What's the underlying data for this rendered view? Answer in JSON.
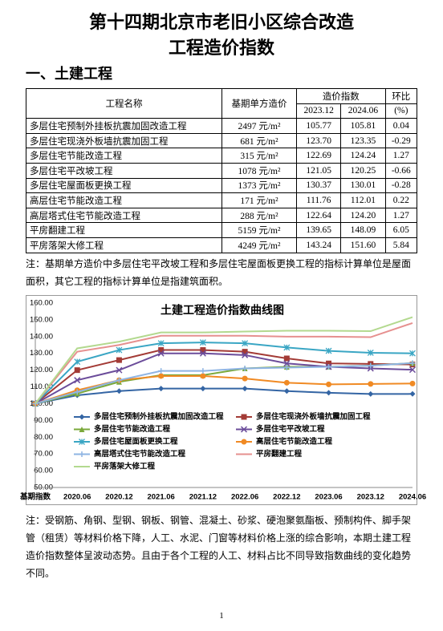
{
  "header": {
    "title_line1": "第十四期北京市老旧小区综合改造",
    "title_line2": "工程造价指数"
  },
  "section": "一、土建工程",
  "table": {
    "headers": [
      "工程名称",
      "基期单方造价",
      "造价指数",
      "环比",
      "2023.12",
      "2024.06",
      "(%)"
    ],
    "rows": [
      [
        "多层住宅预制外挂板抗震加固改造工程",
        "2497 元/m²",
        "105.77",
        "105.81",
        "0.04"
      ],
      [
        "多层住宅现浇外板墙抗震加固工程",
        "681 元/m²",
        "123.70",
        "123.35",
        "-0.29"
      ],
      [
        "多层住宅节能改造工程",
        "315 元/m²",
        "122.69",
        "124.24",
        "1.27"
      ],
      [
        "多层住宅平改坡工程",
        "1078 元/m²",
        "121.05",
        "120.25",
        "-0.66"
      ],
      [
        "多层住宅屋面板更换工程",
        "1373 元/m²",
        "130.37",
        "130.01",
        "-0.28"
      ],
      [
        "高层住宅节能改造工程",
        "171 元/m²",
        "111.76",
        "112.01",
        "0.22"
      ],
      [
        "高层塔式住宅节能改造工程",
        "288 元/m²",
        "122.64",
        "124.20",
        "1.27"
      ],
      [
        "平房翻建工程",
        "5159 元/m²",
        "139.65",
        "148.09",
        "6.05"
      ],
      [
        "平房落架大修工程",
        "4249 元/m²",
        "143.24",
        "151.60",
        "5.84"
      ]
    ]
  },
  "note": "注：基期单方造价中多层住宅平改坡工程和多层住宅屋面板更换工程的指标计算单位是屋面面积，其它工程的指标计算单位是指建筑面积。",
  "chart_data": {
    "type": "line",
    "title": "土建工程造价指数曲线图",
    "categories": [
      "基期指数",
      "2020.06",
      "2020.12",
      "2021.06",
      "2021.12",
      "2022.06",
      "2022.12",
      "2023.06",
      "2023.12",
      "2024.06"
    ],
    "ylim": [
      50,
      160
    ],
    "yticks": [
      {
        "value": 50,
        "label": "50.00"
      },
      {
        "value": 60,
        "label": "60.00"
      },
      {
        "value": 70,
        "label": "70.00"
      },
      {
        "value": 80,
        "label": "80.00"
      },
      {
        "value": 90,
        "label": "90.00"
      },
      {
        "value": 100,
        "label": "100.00"
      },
      {
        "value": 110,
        "label": "110.00"
      },
      {
        "value": 120,
        "label": "120.00"
      },
      {
        "value": 130,
        "label": "130.00"
      },
      {
        "value": 140,
        "label": "140.00"
      },
      {
        "value": 150,
        "label": "150.00"
      },
      {
        "value": 160,
        "label": "160.00"
      }
    ],
    "series": [
      {
        "name": "多层住宅预制外挂板抗震加固改造工程",
        "color": "#3465a4",
        "marker": "diamond",
        "values": [
          100,
          105,
          107.5,
          109,
          109,
          109,
          107.5,
          106.5,
          105.77,
          105.81
        ]
      },
      {
        "name": "多层住宅现浇外板墙抗震加固工程",
        "color": "#a33b36",
        "marker": "square",
        "values": [
          100,
          120,
          126,
          132,
          132,
          131,
          127,
          124,
          123.7,
          123.35
        ]
      },
      {
        "name": "多层住宅节能改造工程",
        "color": "#7aa83a",
        "marker": "triangle",
        "values": [
          100,
          106,
          113,
          117,
          117,
          121,
          122,
          122,
          122.69,
          124.24
        ]
      },
      {
        "name": "多层住宅平改坡工程",
        "color": "#6b4c9a",
        "marker": "x",
        "values": [
          100,
          114,
          120,
          130,
          130,
          129,
          124,
          122,
          121.05,
          120.25
        ]
      },
      {
        "name": "多层住宅屋面板更换工程",
        "color": "#3aa6c4",
        "marker": "star",
        "values": [
          100,
          125,
          132,
          136,
          136.5,
          136,
          133.5,
          131.5,
          130.37,
          130.01
        ]
      },
      {
        "name": "高层住宅节能改造工程",
        "color": "#f08a24",
        "marker": "circle",
        "values": [
          100,
          108,
          114,
          116.5,
          116.5,
          115,
          112.5,
          111.5,
          111.76,
          112.01
        ]
      },
      {
        "name": "高层塔式住宅节能改造工程",
        "color": "#8eb4e3",
        "marker": "plus",
        "values": [
          100,
          107,
          114,
          119.5,
          119.5,
          121,
          121.5,
          122,
          122.64,
          124.2
        ]
      },
      {
        "name": "平房翻建工程",
        "color": "#e6908f",
        "marker": "none",
        "values": [
          100,
          131,
          135,
          140.5,
          140.5,
          140.5,
          140,
          140,
          139.65,
          148.09
        ]
      },
      {
        "name": "平房落架大修工程",
        "color": "#b3d98f",
        "marker": "none",
        "values": [
          100,
          133,
          137,
          142.5,
          142.5,
          143,
          143.5,
          143.5,
          143.24,
          151.6
        ]
      }
    ]
  },
  "footer_note": "注：受钢筋、角钢、型钢、钢板、钢管、混凝土、砂浆、硬泡聚氨酯板、预制构件、脚手架管（租赁）等材料价格下降，人工、水泥、门窗等材料价格上涨的综合影响，本期土建工程造价指数整体呈波动态势。且由于各个工程的人工、材料占比不同导致指数曲线的变化趋势不同。",
  "page_number": "1"
}
